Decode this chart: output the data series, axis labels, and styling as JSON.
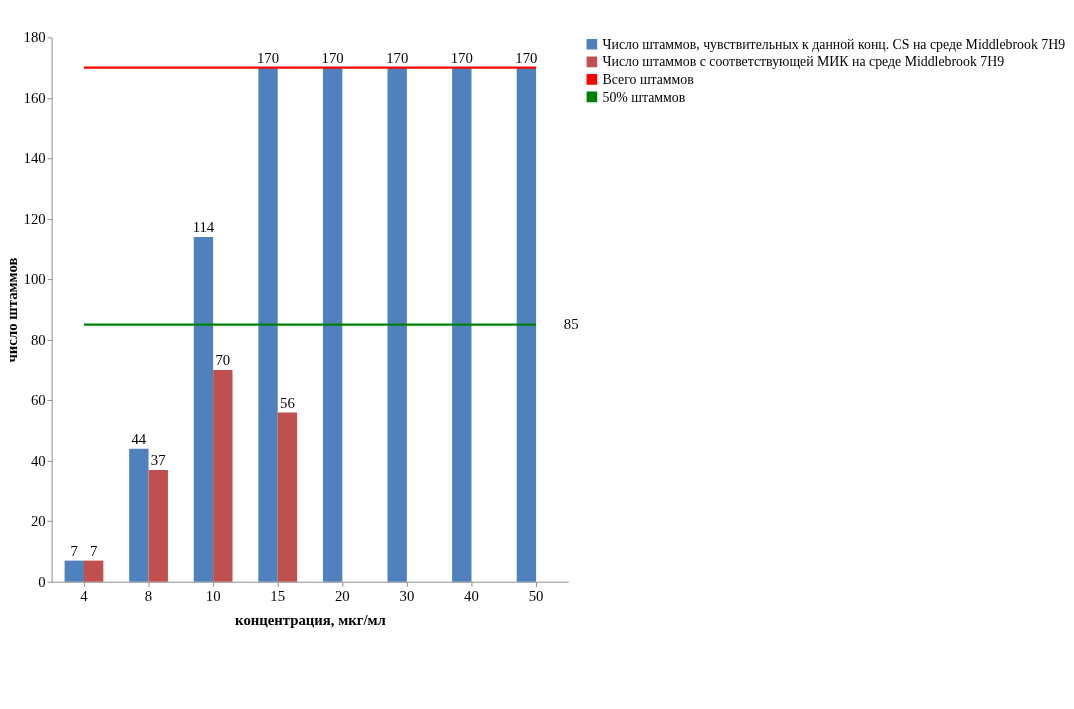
{
  "chart_data": {
    "type": "bar",
    "xlabel": "концентрация, мкг/мл",
    "ylabel": "число штаммов",
    "categories": [
      "4",
      "8",
      "10",
      "15",
      "20",
      "30",
      "40",
      "50"
    ],
    "series": [
      {
        "name": "Число штаммов, чувствительных к данной конц. CS на среде Middlebrook  7H9",
        "color": "#4f81bd",
        "values": [
          7,
          44,
          114,
          170,
          170,
          170,
          170,
          170
        ],
        "value_labels": [
          "7",
          "44",
          "114",
          "170",
          "170",
          "170",
          "170",
          "170"
        ]
      },
      {
        "name": "Число штаммов с соответствующей МИК на среде Middlebrook  7H9",
        "color": "#c0504d",
        "values": [
          7,
          37,
          70,
          56,
          null,
          null,
          null,
          null
        ],
        "value_labels": [
          "7",
          "37",
          "70",
          "56",
          null,
          null,
          null,
          null
        ]
      },
      {
        "name": "Всего штаммов",
        "type": "line",
        "color": "#ff0000",
        "values": [
          170,
          170,
          170,
          170,
          170,
          170,
          170,
          170
        ]
      },
      {
        "name": "50% штаммов",
        "type": "line",
        "color": "#008000",
        "values": [
          85,
          85,
          85,
          85,
          85,
          85,
          85,
          85
        ],
        "value_labels": [
          null,
          null,
          null,
          null,
          null,
          null,
          null,
          "85"
        ]
      }
    ],
    "ylim": [
      0,
      180
    ],
    "yticks": [
      0,
      20,
      40,
      60,
      80,
      100,
      120,
      140,
      160,
      180
    ],
    "grid": false,
    "legend": "right",
    "marker": "none",
    "line_style": "solid"
  }
}
